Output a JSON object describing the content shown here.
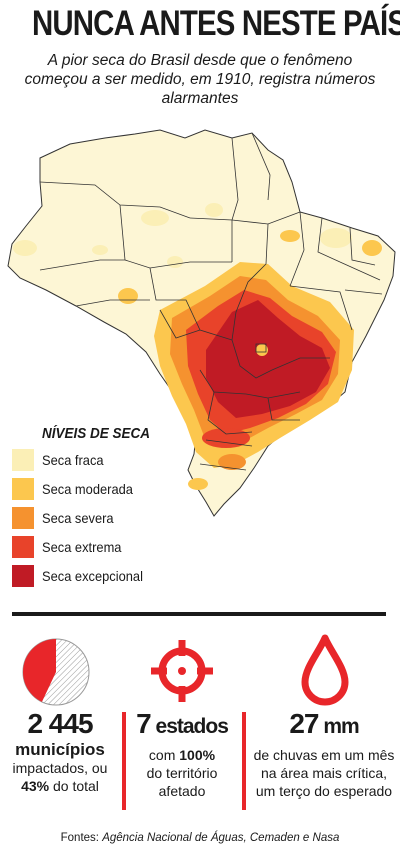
{
  "header": {
    "title": "NUNCA ANTES NESTE PAÍS",
    "subtitle": "A pior seca do Brasil desde que o fenômeno começou a ser medido, em 1910, registra números alarmantes"
  },
  "legend": {
    "title": "NÍVEIS DE SECA",
    "items": [
      {
        "label": "Seca fraca",
        "color": "#fbefb6"
      },
      {
        "label": "Seca moderada",
        "color": "#fcc74e"
      },
      {
        "label": "Seca severa",
        "color": "#f5922f"
      },
      {
        "label": "Seca extrema",
        "color": "#e8432a"
      },
      {
        "label": "Seca excepcional",
        "color": "#c01b25"
      }
    ]
  },
  "stats": [
    {
      "icon": "pie-chart-icon",
      "value": "2 445",
      "line1": "municípios",
      "line2": "impactados, ou",
      "line3_bold": "43%",
      "line3_rest": " do total",
      "pie_fraction": 0.43
    },
    {
      "icon": "target-crosshair-icon",
      "value_number": "7",
      "value_unit": " estados",
      "line1_pre": "com ",
      "line1_bold": "100%",
      "line2": "do território",
      "line3": "afetado"
    },
    {
      "icon": "water-drop-icon",
      "value_number": "27",
      "value_unit": " mm",
      "line1": "de chuvas em um mês",
      "line2": "na área mais crítica,",
      "line3": "um terço do esperado"
    }
  ],
  "sources": {
    "prefix": "Fontes: ",
    "text": "Agência Nacional de Águas, Cemaden e Nasa"
  },
  "colors": {
    "accent": "#e8262a",
    "text": "#1a1a1a"
  }
}
